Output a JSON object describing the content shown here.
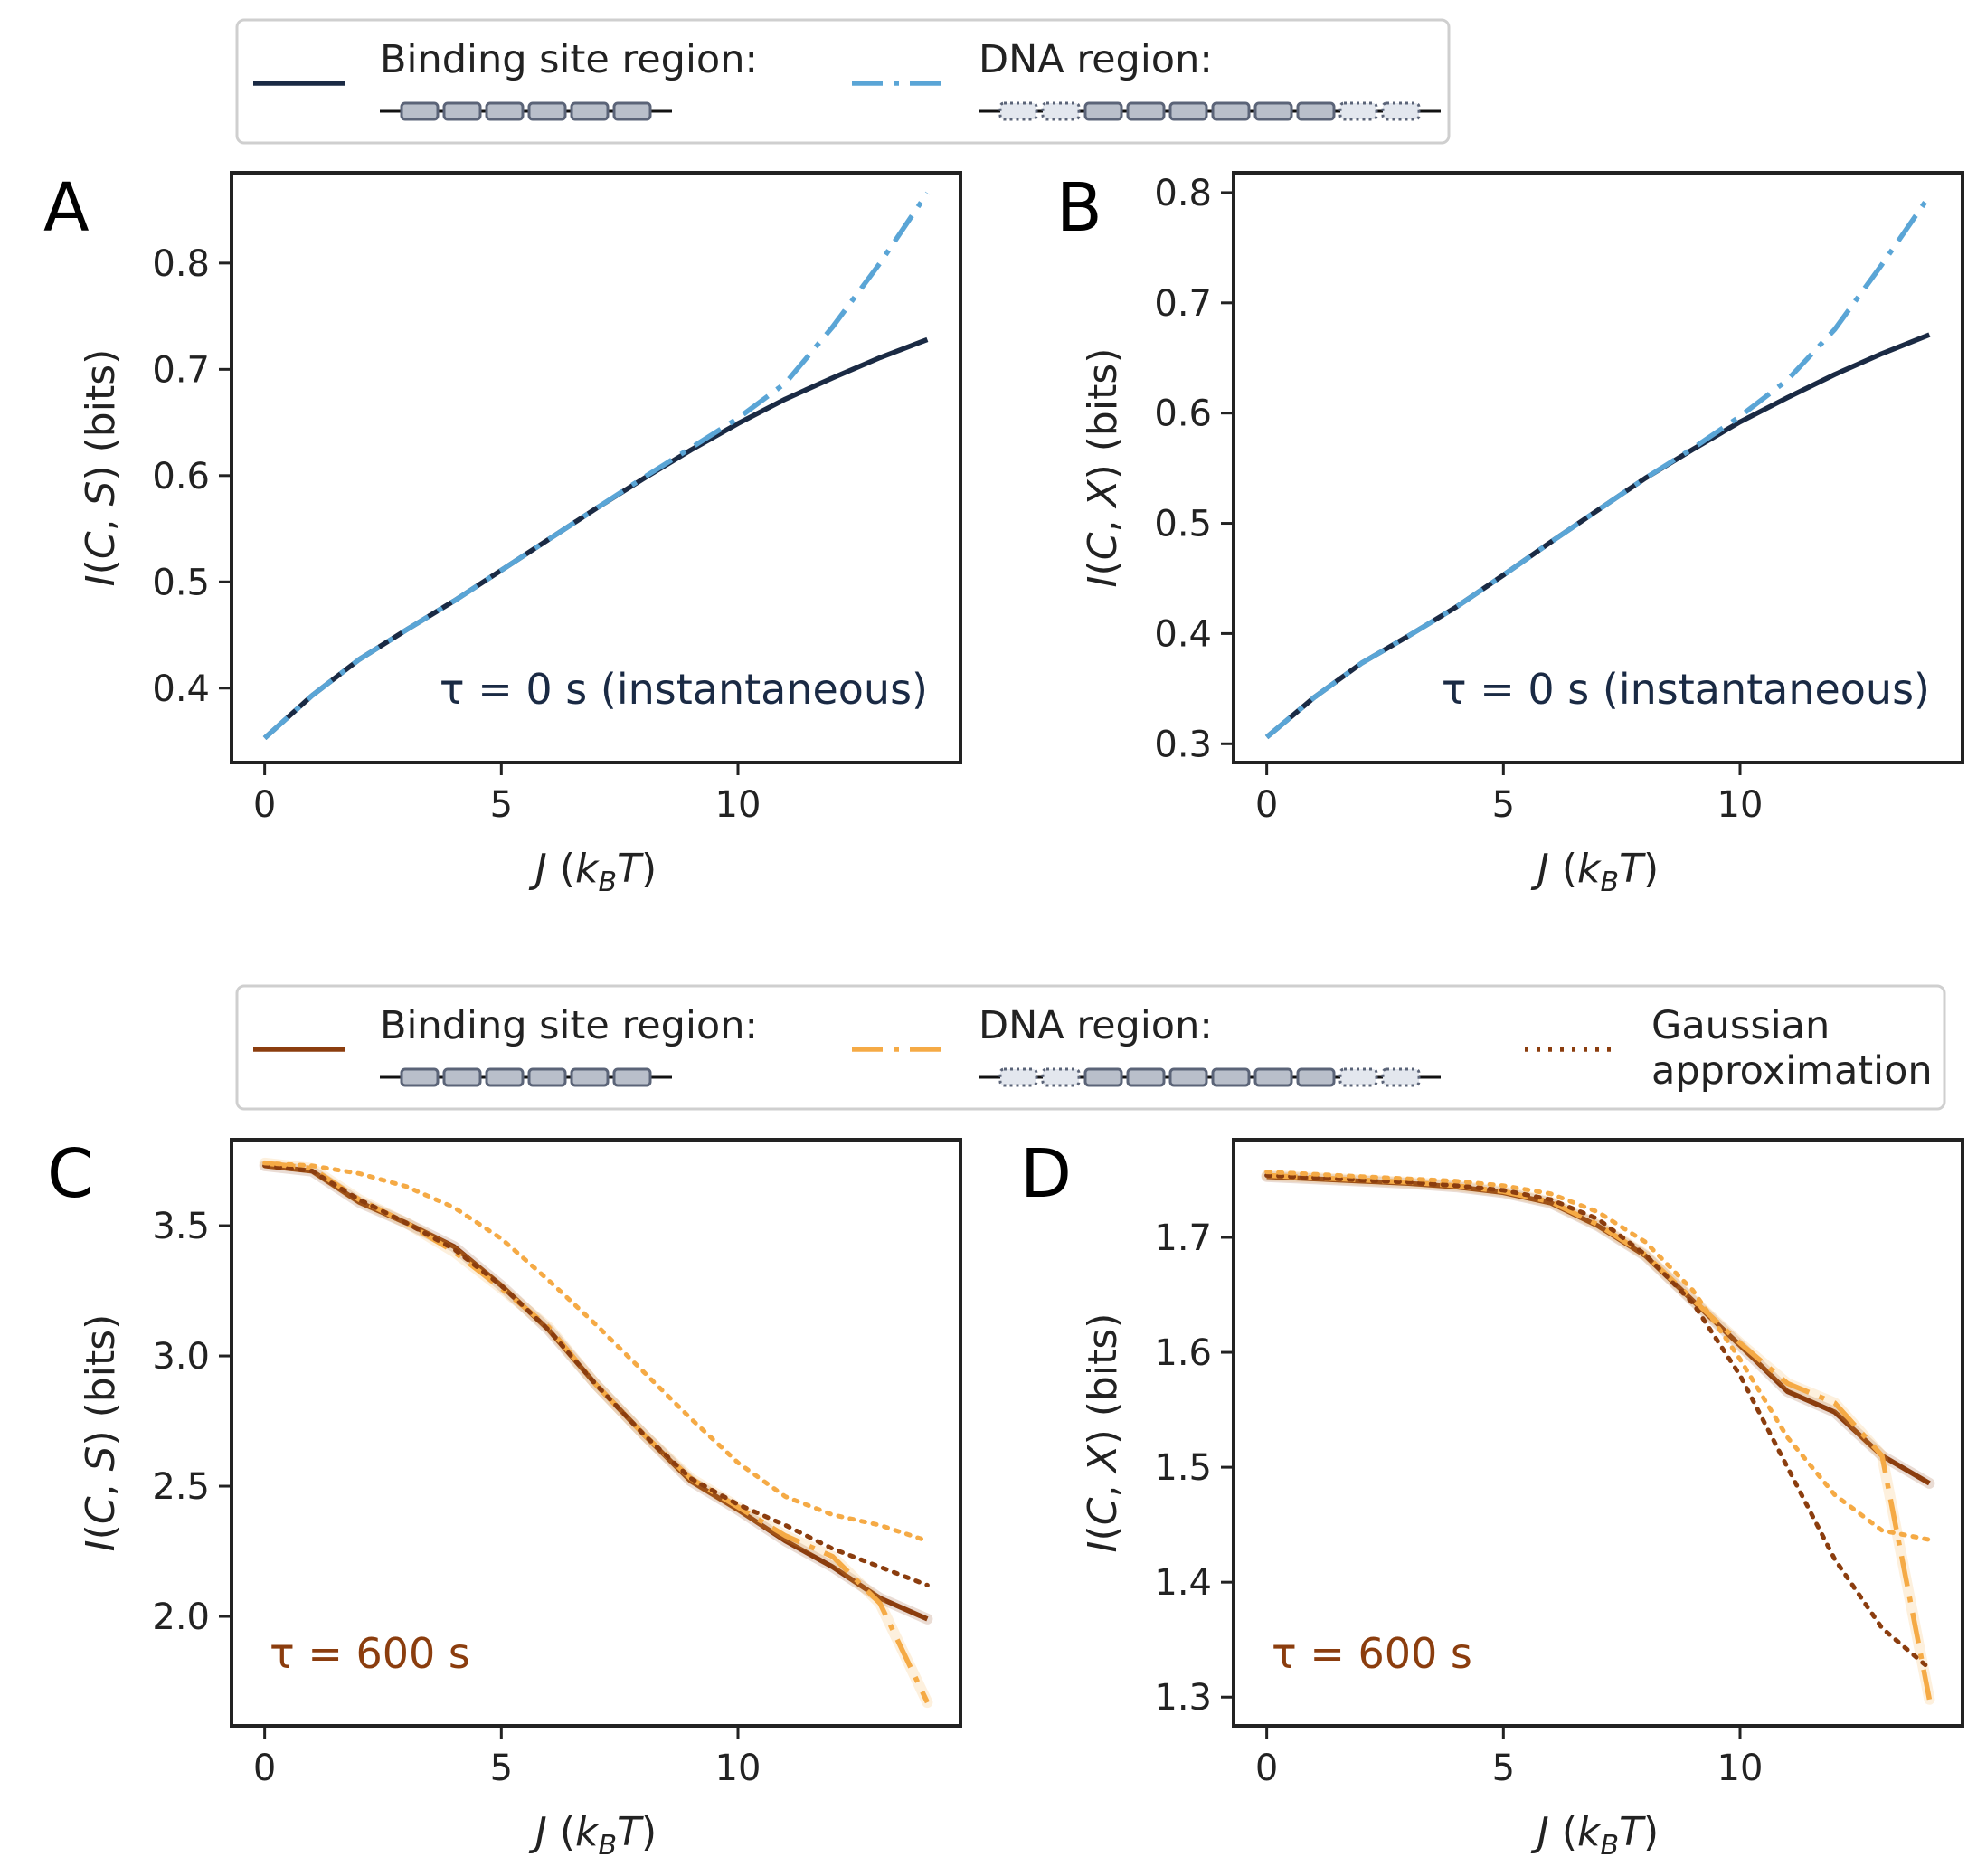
{
  "colors": {
    "navy": "#1a2a44",
    "sky": "#5aa5d6",
    "brown": "#8b3d0e",
    "orange": "#f5aa45",
    "axis": "#222222",
    "bead_fill": "#b9bfca",
    "bead_stroke": "#5b6478",
    "bead_faint_fill": "#e3e7ee"
  },
  "legends": [
    {
      "items": [
        {
          "label": "Binding site region:",
          "style": "solid",
          "color_key": "navy",
          "dna": "binding"
        },
        {
          "label": "DNA region:",
          "style": "dashdot",
          "color_key": "sky",
          "dna": "dna"
        }
      ]
    },
    {
      "items": [
        {
          "label": "Binding site region:",
          "style": "solid",
          "color_key": "brown",
          "dna": "binding"
        },
        {
          "label": "DNA region:",
          "style": "dashdot",
          "color_key": "orange",
          "dna": "dna"
        },
        {
          "label_lines": [
            "Gaussian",
            "approximation"
          ],
          "style": "dotted",
          "color_key": "brown",
          "dna": "none"
        }
      ]
    }
  ],
  "chart_data": [
    {
      "panel": "A",
      "type": "line",
      "xlabel": "J (k_B T)",
      "ylabel": "I(C, S) (bits)",
      "xlim": [
        -0.7,
        14.7
      ],
      "ylim": [
        0.33,
        0.885
      ],
      "xticks": [
        0,
        5,
        10
      ],
      "yticks": [
        0.4,
        0.5,
        0.6,
        0.7,
        0.8
      ],
      "annotation": "τ = 0 s (instantaneous)",
      "annotation_color_key": "navy",
      "series": [
        {
          "name": "Binding site region",
          "color_key": "navy",
          "style": "solid",
          "x": [
            0,
            1,
            2,
            3,
            4,
            5,
            6,
            7,
            8,
            9,
            10,
            11,
            12,
            13,
            14
          ],
          "y": [
            0.353,
            0.393,
            0.427,
            0.455,
            0.482,
            0.511,
            0.54,
            0.569,
            0.597,
            0.624,
            0.649,
            0.672,
            0.692,
            0.711,
            0.728
          ]
        },
        {
          "name": "DNA region",
          "color_key": "sky",
          "style": "dashdot",
          "x": [
            0,
            1,
            2,
            3,
            4,
            5,
            6,
            7,
            8,
            9,
            10,
            11,
            12,
            13,
            14
          ],
          "y": [
            0.353,
            0.393,
            0.427,
            0.455,
            0.482,
            0.511,
            0.54,
            0.569,
            0.598,
            0.626,
            0.654,
            0.687,
            0.74,
            0.8,
            0.866
          ]
        }
      ]
    },
    {
      "panel": "B",
      "type": "line",
      "xlabel": "J (k_B T)",
      "ylabel": "I(C, X) (bits)",
      "xlim": [
        -0.7,
        14.7
      ],
      "ylim": [
        0.283,
        0.818
      ],
      "xticks": [
        0,
        5,
        10
      ],
      "yticks": [
        0.3,
        0.4,
        0.5,
        0.6,
        0.7,
        0.8
      ],
      "annotation": "τ = 0 s (instantaneous)",
      "annotation_color_key": "navy",
      "series": [
        {
          "name": "Binding site region",
          "color_key": "navy",
          "style": "solid",
          "x": [
            0,
            1,
            2,
            3,
            4,
            5,
            6,
            7,
            8,
            9,
            10,
            11,
            12,
            13,
            14
          ],
          "y": [
            0.306,
            0.342,
            0.373,
            0.398,
            0.424,
            0.453,
            0.483,
            0.512,
            0.541,
            0.567,
            0.592,
            0.614,
            0.635,
            0.654,
            0.671
          ]
        },
        {
          "name": "DNA region",
          "color_key": "sky",
          "style": "dashdot",
          "x": [
            0,
            1,
            2,
            3,
            4,
            5,
            6,
            7,
            8,
            9,
            10,
            11,
            12,
            13,
            14
          ],
          "y": [
            0.306,
            0.342,
            0.373,
            0.398,
            0.424,
            0.453,
            0.483,
            0.512,
            0.541,
            0.568,
            0.597,
            0.63,
            0.676,
            0.735,
            0.797
          ]
        }
      ]
    },
    {
      "panel": "C",
      "type": "line",
      "xlabel": "J (k_B T)",
      "ylabel": "I(C, S) (bits)",
      "xlim": [
        -0.7,
        14.7
      ],
      "ylim": [
        1.58,
        3.83
      ],
      "xticks": [
        0,
        5,
        10
      ],
      "yticks": [
        2.0,
        2.5,
        3.0,
        3.5
      ],
      "annotation": "τ = 600 s",
      "annotation_color_key": "brown",
      "series": [
        {
          "name": "Binding site region",
          "color_key": "brown",
          "style": "solid",
          "x": [
            0,
            1,
            2,
            3,
            4,
            5,
            6,
            7,
            8,
            9,
            10,
            11,
            12,
            13,
            14
          ],
          "y": [
            3.73,
            3.71,
            3.59,
            3.51,
            3.42,
            3.27,
            3.1,
            2.89,
            2.7,
            2.52,
            2.41,
            2.29,
            2.19,
            2.07,
            1.99
          ]
        },
        {
          "name": "DNA region",
          "color_key": "orange",
          "style": "dashdot",
          "x": [
            0,
            1,
            2,
            3,
            4,
            5,
            6,
            7,
            8,
            9,
            10,
            11,
            12,
            13,
            14
          ],
          "y": [
            3.74,
            3.72,
            3.6,
            3.51,
            3.4,
            3.26,
            3.11,
            2.89,
            2.7,
            2.53,
            2.42,
            2.31,
            2.23,
            2.05,
            1.67
          ]
        },
        {
          "name": "Gaussian approximation (binding site)",
          "color_key": "brown",
          "style": "dotted",
          "x": [
            0,
            1,
            2,
            3,
            4,
            5,
            6,
            7,
            8,
            9,
            10,
            11,
            12,
            13,
            14
          ],
          "y": [
            3.73,
            3.71,
            3.6,
            3.51,
            3.41,
            3.27,
            3.1,
            2.89,
            2.7,
            2.53,
            2.43,
            2.35,
            2.26,
            2.19,
            2.12
          ]
        },
        {
          "name": "Gaussian approximation (DNA)",
          "color_key": "orange",
          "style": "dotted",
          "x": [
            0,
            1,
            2,
            3,
            4,
            5,
            6,
            7,
            8,
            9,
            10,
            11,
            12,
            13,
            14
          ],
          "y": [
            3.74,
            3.73,
            3.7,
            3.65,
            3.57,
            3.45,
            3.29,
            3.12,
            2.94,
            2.76,
            2.59,
            2.46,
            2.39,
            2.35,
            2.29
          ]
        }
      ]
    },
    {
      "panel": "D",
      "type": "line",
      "xlabel": "J (k_B T)",
      "ylabel": "I(C, X) (bits)",
      "xlim": [
        -0.7,
        14.7
      ],
      "ylim": [
        1.275,
        1.785
      ],
      "xticks": [
        0,
        5,
        10
      ],
      "yticks": [
        1.3,
        1.4,
        1.5,
        1.6,
        1.7
      ],
      "annotation": "τ = 600 s",
      "annotation_color_key": "brown",
      "series": [
        {
          "name": "Binding site region",
          "color_key": "brown",
          "style": "solid",
          "x": [
            0,
            1,
            2,
            3,
            4,
            5,
            6,
            7,
            8,
            9,
            10,
            11,
            12,
            13,
            14
          ],
          "y": [
            1.753,
            1.751,
            1.749,
            1.747,
            1.744,
            1.739,
            1.73,
            1.71,
            1.684,
            1.645,
            1.606,
            1.566,
            1.548,
            1.51,
            1.486
          ]
        },
        {
          "name": "DNA region",
          "color_key": "orange",
          "style": "dashdot",
          "x": [
            0,
            1,
            2,
            3,
            4,
            5,
            6,
            7,
            8,
            9,
            10,
            11,
            12,
            13,
            14
          ],
          "y": [
            1.754,
            1.752,
            1.75,
            1.748,
            1.745,
            1.74,
            1.731,
            1.711,
            1.685,
            1.646,
            1.608,
            1.573,
            1.556,
            1.51,
            1.298
          ]
        },
        {
          "name": "Gaussian approximation (binding site)",
          "color_key": "brown",
          "style": "dotted",
          "x": [
            0,
            1,
            2,
            3,
            4,
            5,
            6,
            7,
            8,
            9,
            10,
            11,
            12,
            13,
            14
          ],
          "y": [
            1.754,
            1.752,
            1.75,
            1.748,
            1.745,
            1.741,
            1.733,
            1.716,
            1.685,
            1.643,
            1.58,
            1.5,
            1.42,
            1.36,
            1.325
          ]
        },
        {
          "name": "Gaussian approximation (DNA)",
          "color_key": "orange",
          "style": "dotted",
          "x": [
            0,
            1,
            2,
            3,
            4,
            5,
            6,
            7,
            8,
            9,
            10,
            11,
            12,
            13,
            14
          ],
          "y": [
            1.757,
            1.755,
            1.753,
            1.751,
            1.749,
            1.745,
            1.738,
            1.722,
            1.696,
            1.654,
            1.594,
            1.526,
            1.476,
            1.445,
            1.437
          ]
        }
      ]
    }
  ]
}
